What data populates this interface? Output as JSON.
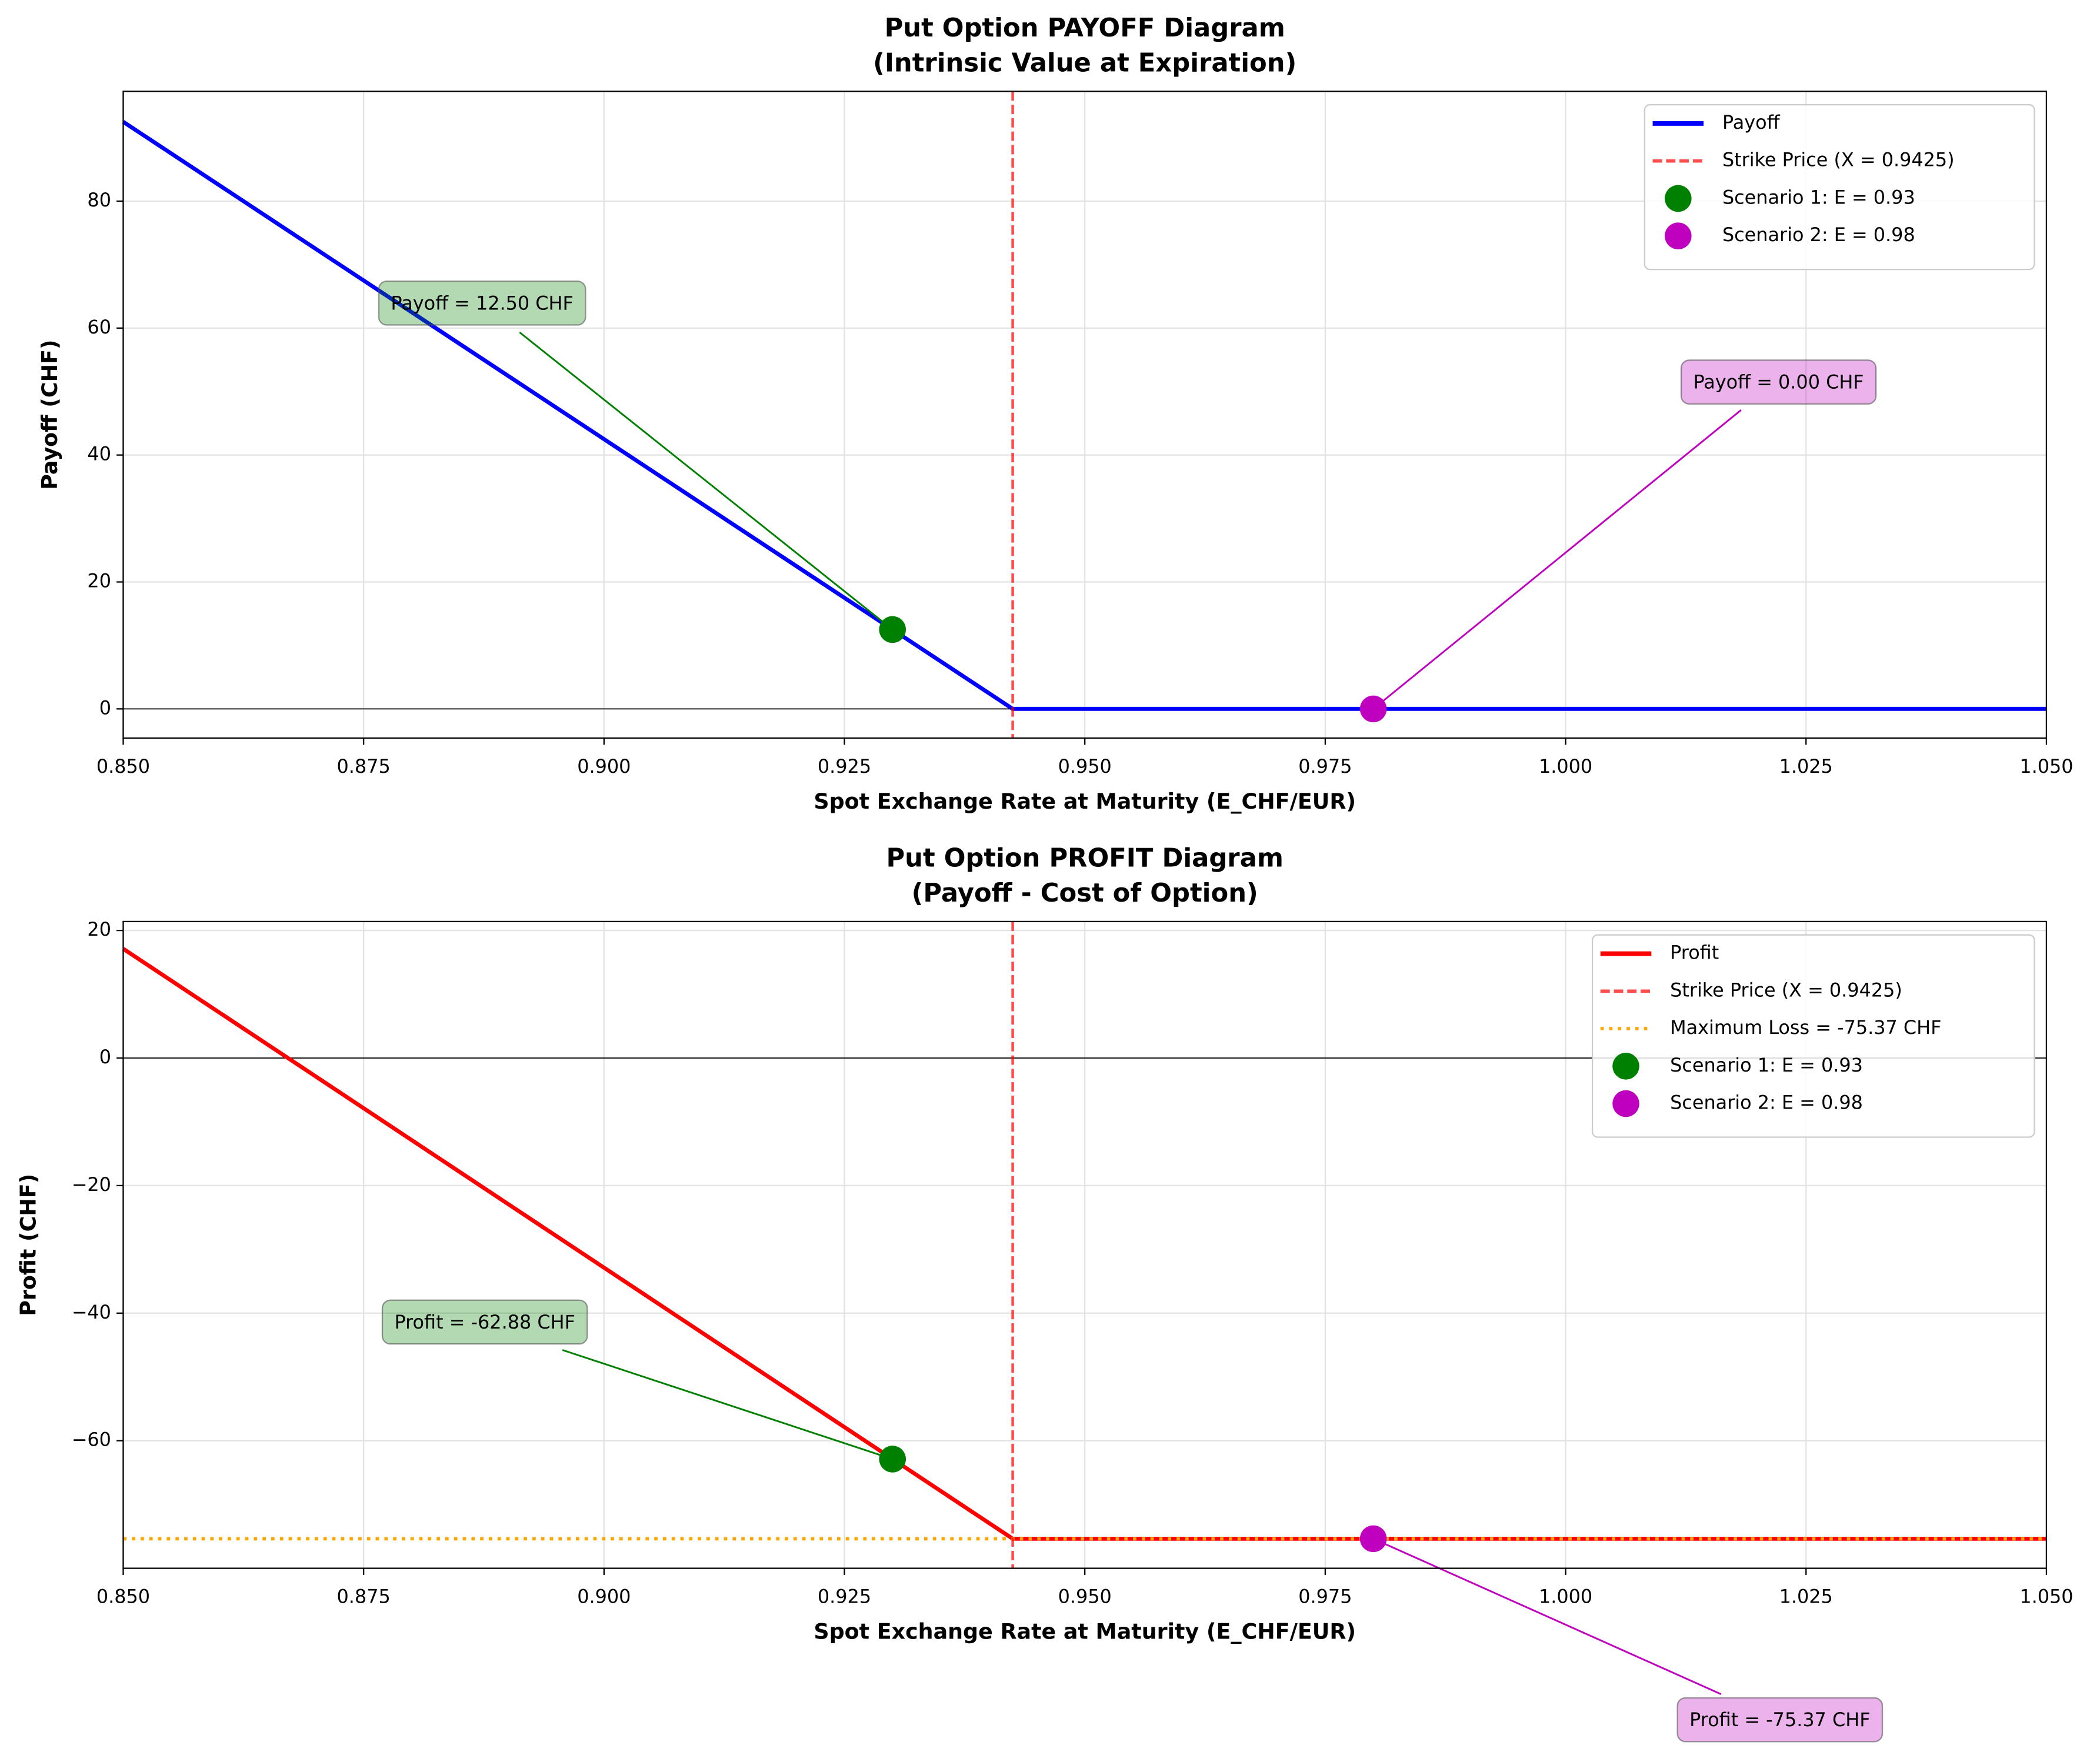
{
  "chart_data": [
    {
      "type": "line",
      "title": "Put Option PAYOFF Diagram",
      "subtitle": "(Intrinsic Value at Expiration)",
      "xlabel": "Spot Exchange Rate at Maturity (E_CHF/EUR)",
      "ylabel": "Payoff (CHF)",
      "xlim": [
        0.85,
        1.05
      ],
      "ylim": [
        -4.6,
        97.3
      ],
      "xticks": [
        {
          "value": 0.85,
          "label": "0.850"
        },
        {
          "value": 0.875,
          "label": "0.875"
        },
        {
          "value": 0.9,
          "label": "0.900"
        },
        {
          "value": 0.925,
          "label": "0.925"
        },
        {
          "value": 0.95,
          "label": "0.950"
        },
        {
          "value": 0.975,
          "label": "0.975"
        },
        {
          "value": 1.0,
          "label": "1.000"
        },
        {
          "value": 1.025,
          "label": "1.025"
        },
        {
          "value": 1.05,
          "label": "1.050"
        }
      ],
      "yticks": [
        0,
        20,
        40,
        60,
        80
      ],
      "grid": true,
      "legend": "upper right",
      "x": [
        0.85,
        0.9425,
        1.05
      ],
      "series": [
        {
          "name": "Payoff",
          "color": "#0000ff",
          "values": [
            92.5,
            0,
            0
          ]
        }
      ],
      "strike": {
        "name": "Strike Price (X = 0.9425)",
        "value": 0.9425,
        "color": "#ff0000"
      },
      "scenarios": [
        {
          "name": "Scenario 1: E = 0.93",
          "color": "#008000",
          "x": 0.93,
          "value": 12.5,
          "value_label": "Payoff = 12.50 CHF"
        },
        {
          "name": "Scenario 2: E = 0.98",
          "color": "#bf00bf",
          "x": 0.98,
          "value": 0,
          "value_label": "Payoff = 0.00 CHF"
        }
      ]
    },
    {
      "type": "line",
      "title": "Put Option PROFIT Diagram",
      "subtitle": "(Payoff - Cost of Option)",
      "xlabel": "Spot Exchange Rate at Maturity (E_CHF/EUR)",
      "ylabel": "Profit (CHF)",
      "xlim": [
        0.85,
        1.05
      ],
      "ylim": [
        -80,
        21.4
      ],
      "xticks": [
        {
          "value": 0.85,
          "label": "0.850"
        },
        {
          "value": 0.875,
          "label": "0.875"
        },
        {
          "value": 0.9,
          "label": "0.900"
        },
        {
          "value": 0.925,
          "label": "0.925"
        },
        {
          "value": 0.95,
          "label": "0.950"
        },
        {
          "value": 0.975,
          "label": "0.975"
        },
        {
          "value": 1.0,
          "label": "1.000"
        },
        {
          "value": 1.025,
          "label": "1.025"
        },
        {
          "value": 1.05,
          "label": "1.050"
        }
      ],
      "yticks": [
        {
          "value": -60,
          "label": "−60"
        },
        {
          "value": -40,
          "label": "−40"
        },
        {
          "value": -20,
          "label": "−20"
        },
        0,
        20
      ],
      "grid": true,
      "legend": "upper right",
      "x": [
        0.85,
        0.9425,
        1.05
      ],
      "series": [
        {
          "name": "Profit",
          "color": "#ff0000",
          "values": [
            17.13,
            -75.37,
            -75.37
          ]
        }
      ],
      "strike": {
        "name": "Strike Price (X = 0.9425)",
        "value": 0.9425,
        "color": "#ff0000"
      },
      "hline": {
        "name": "Maximum Loss = -75.37 CHF",
        "value": -75.37,
        "color": "#ffa500"
      },
      "scenarios": [
        {
          "name": "Scenario 1: E = 0.93",
          "color": "#008000",
          "x": 0.93,
          "value": -62.88,
          "value_label": "Profit = -62.88 CHF"
        },
        {
          "name": "Scenario 2: E = 0.98",
          "color": "#bf00bf",
          "x": 0.98,
          "value": -75.37,
          "value_label": "Profit = -75.37 CHF"
        }
      ]
    }
  ]
}
